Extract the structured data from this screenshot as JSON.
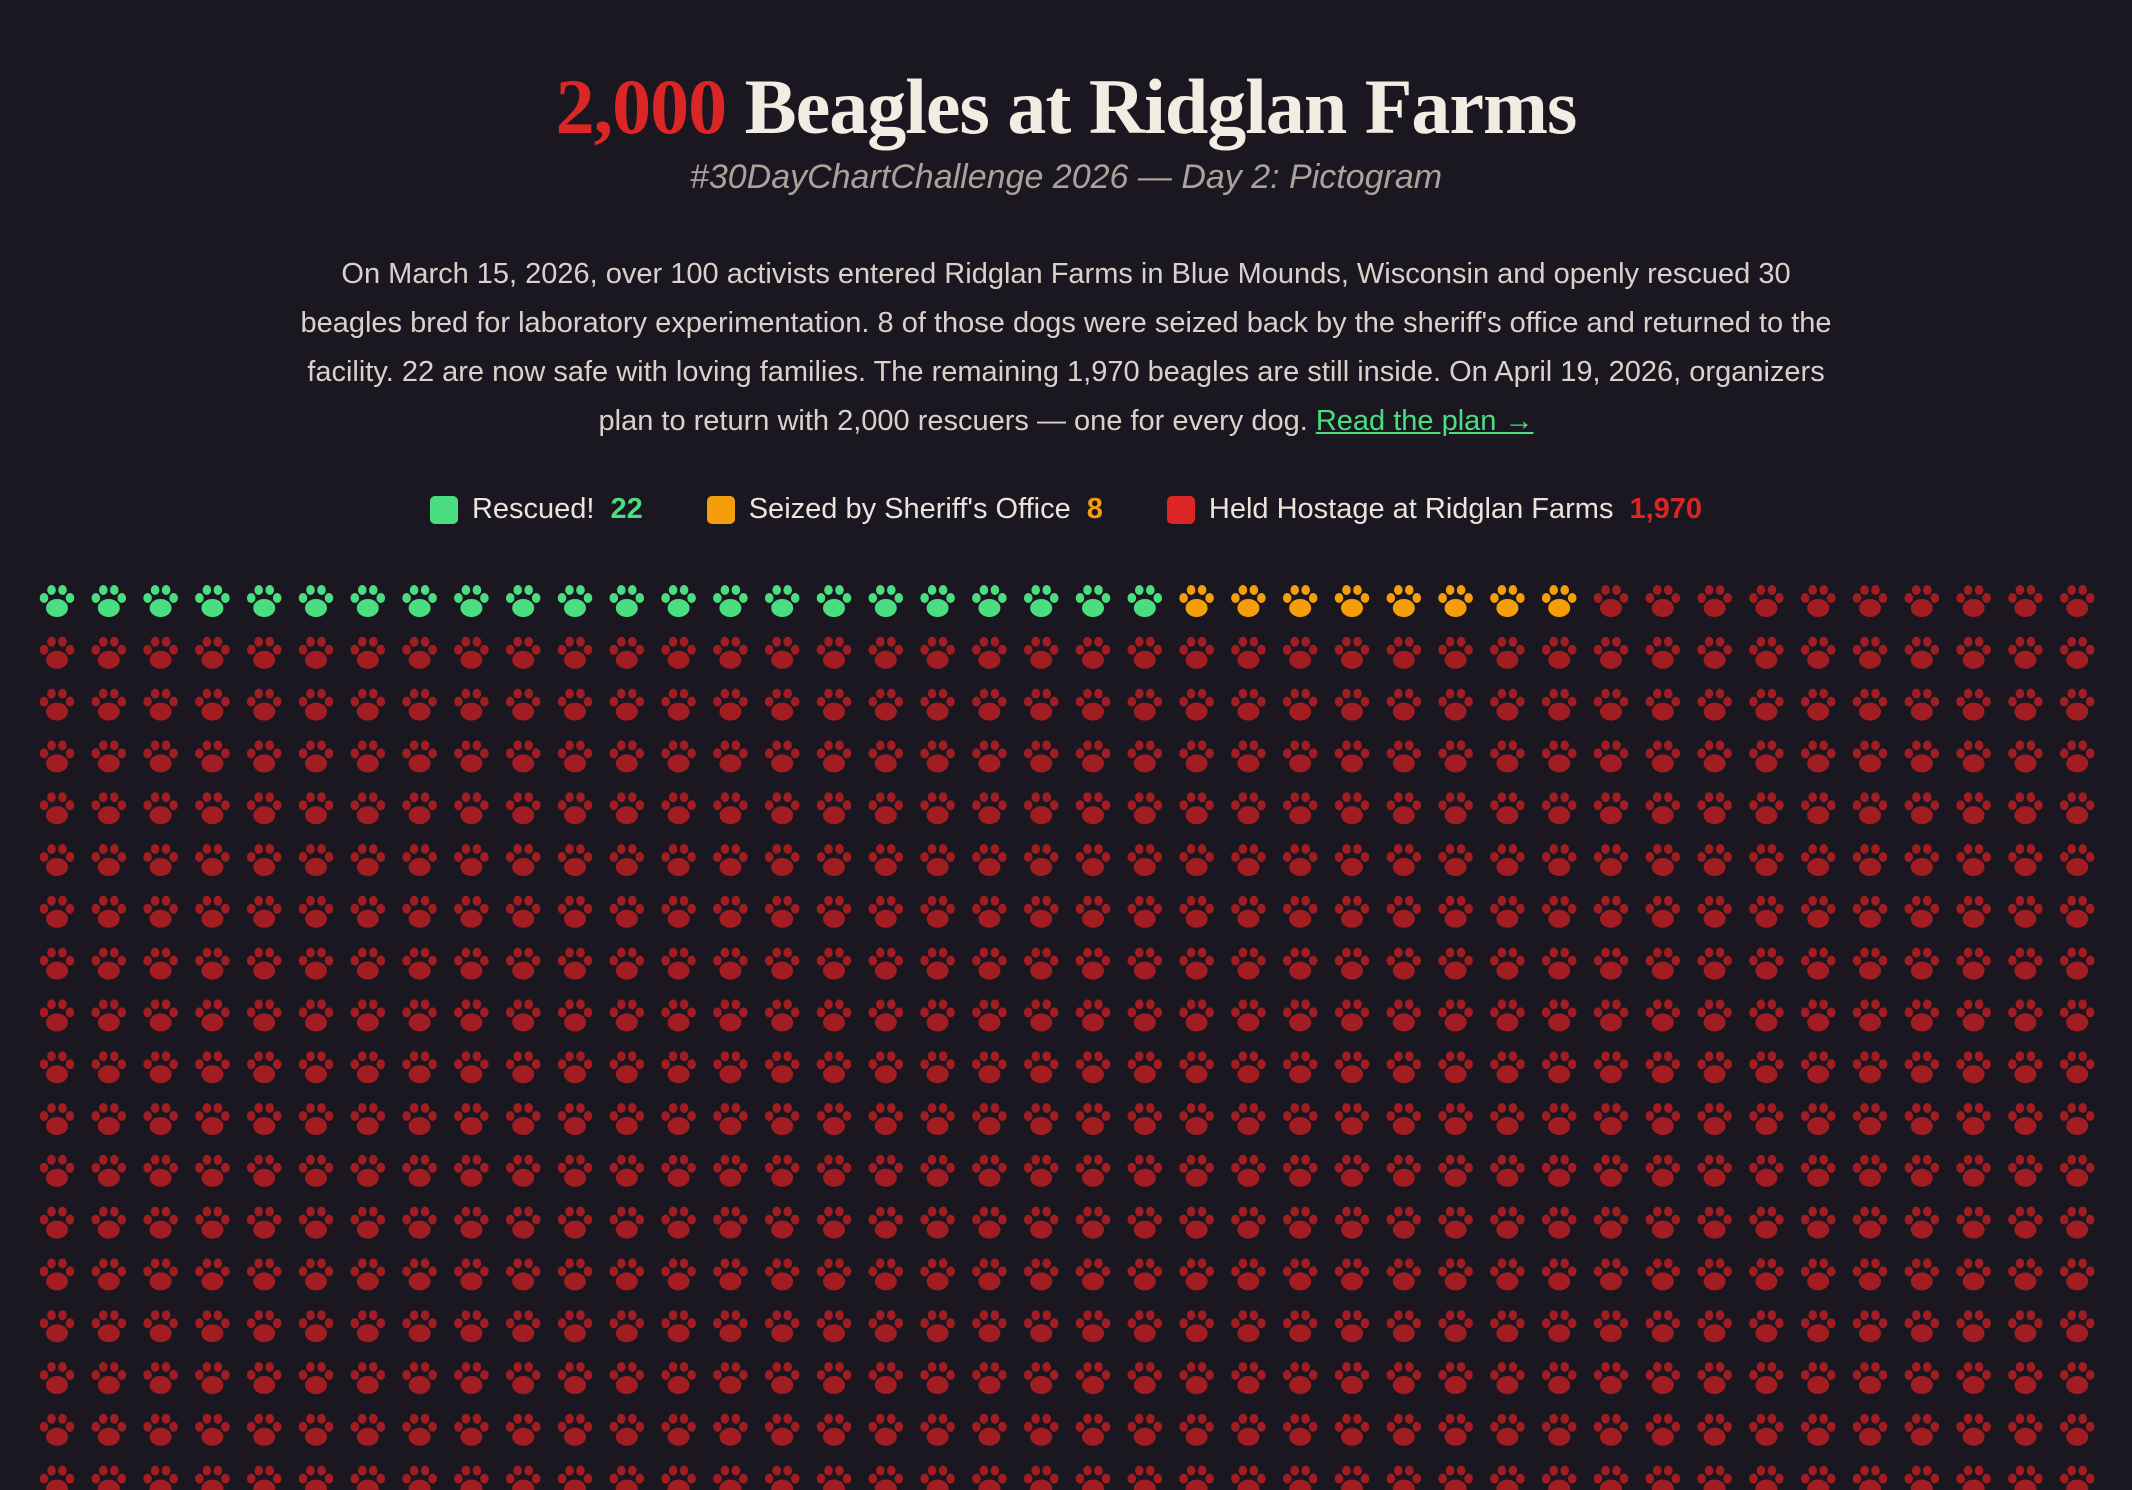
{
  "chart_data": {
    "type": "pictogram",
    "title_highlight": "2,000",
    "title": "Beagles at Ridglan Farms",
    "subtitle": "#30DayChartChallenge 2026 — Day 2: Pictogram",
    "description": "On March 15, 2026, over 100 activists entered Ridglan Farms in Blue Mounds, Wisconsin and openly rescued 30 beagles bred for laboratory experimentation. 8 of those dogs were seized back by the sheriff's office and returned to the facility. 22 are now safe with loving families. The remaining 1,970 beagles are still inside. On April 19, 2026, organizers plan to return with 2,000 rescuers — one for every dog.",
    "link_text": "Read the plan →",
    "series": [
      {
        "name": "Rescued!",
        "color": "#4ade80",
        "paw_color": "#4ade80",
        "value": 22
      },
      {
        "name": "Seized by Sheriff's Office",
        "color": "#f59e0b",
        "paw_color": "#f59e0b",
        "value": 8
      },
      {
        "name": "Held Hostage at Ridglan Farms",
        "color": "#dc2626",
        "paw_color": "#a11d22",
        "value": 1970,
        "value_label": "1,970"
      }
    ]
  }
}
